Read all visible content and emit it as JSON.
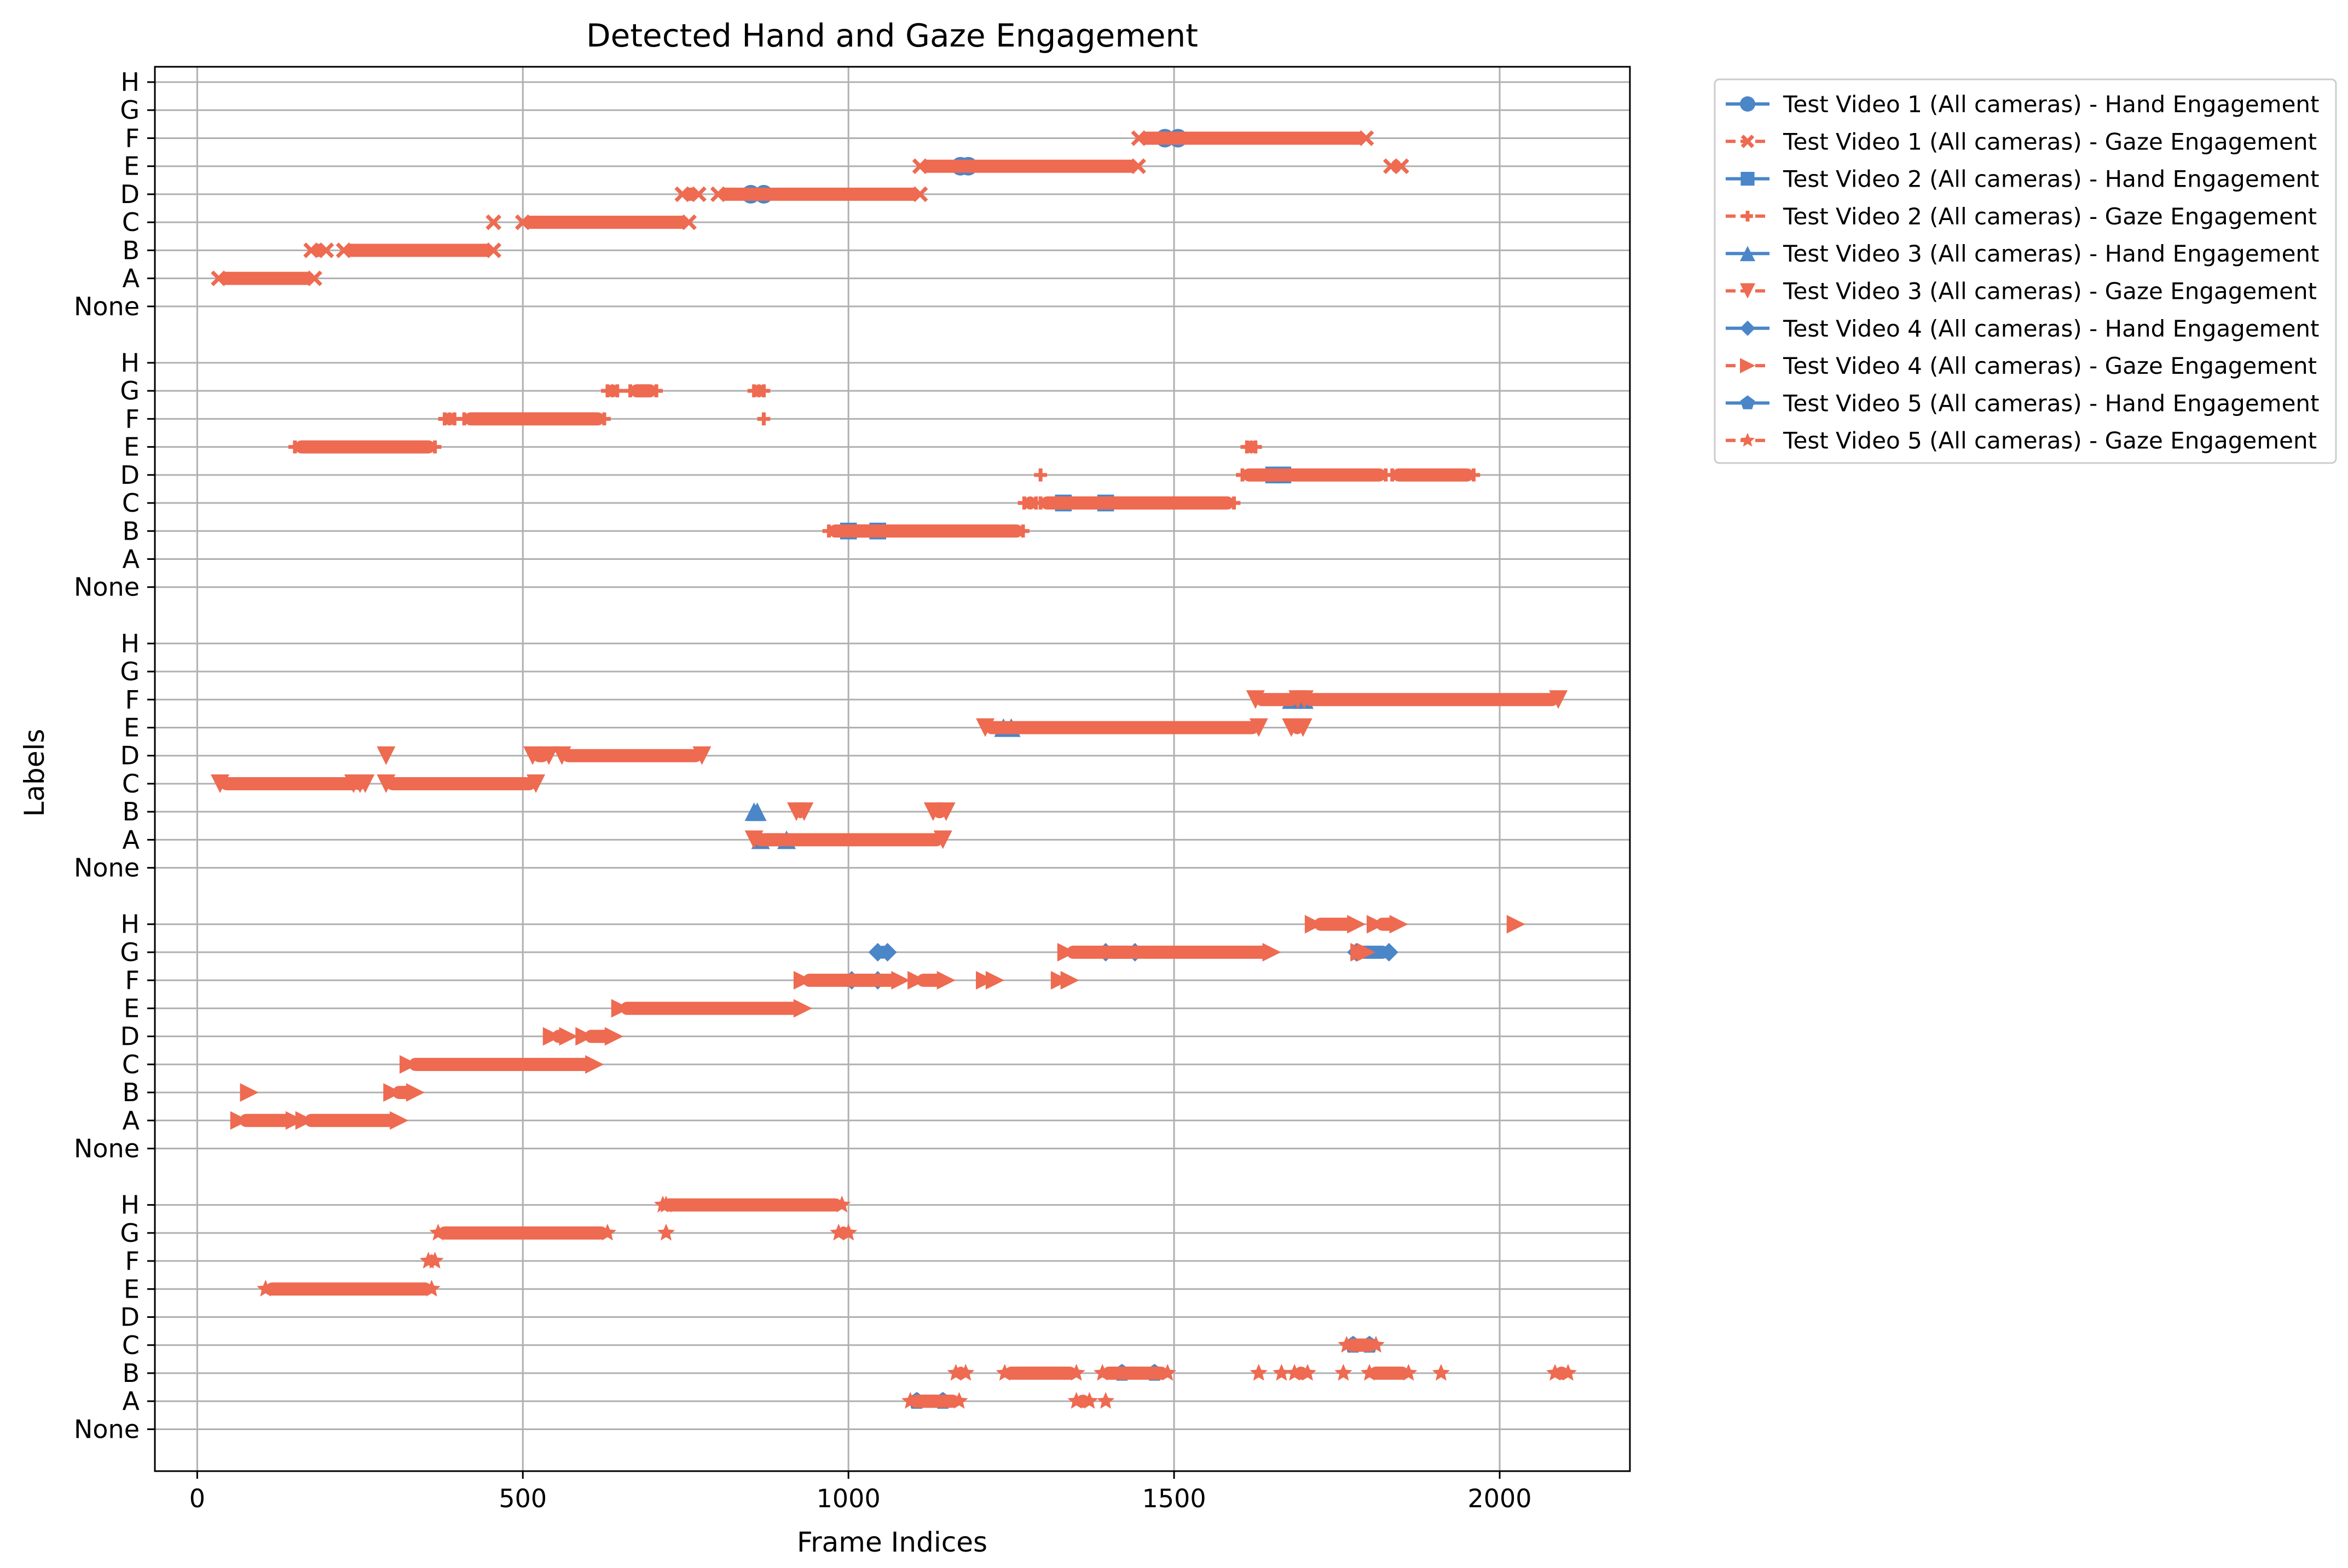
{
  "chart_data": {
    "type": "scatter",
    "title": "Detected Hand and Gaze Engagement",
    "xlabel": "Frame Indices",
    "ylabel": "Labels",
    "xlim": [
      -65,
      2200
    ],
    "x_ticks": [
      0,
      500,
      1000,
      1500,
      2000
    ],
    "x_tick_labels": [
      "0",
      "500",
      "1000",
      "1500",
      "2000"
    ],
    "y_levels": [
      "None",
      "A",
      "B",
      "C",
      "D",
      "E",
      "F",
      "G",
      "H"
    ],
    "grid": true,
    "legend_position": "outside-upper-right",
    "colors": {
      "hand": "#4a86c8",
      "gaze": "#ee6a50"
    },
    "legend": [
      {
        "label": "Test Video 1 (All cameras) - Hand Engagement",
        "kind": "hand",
        "marker": "circle"
      },
      {
        "label": "Test Video 1 (All cameras) - Gaze Engagement",
        "kind": "gaze",
        "marker": "x"
      },
      {
        "label": "Test Video 2 (All cameras) - Hand Engagement",
        "kind": "hand",
        "marker": "square"
      },
      {
        "label": "Test Video 2 (All cameras) - Gaze Engagement",
        "kind": "gaze",
        "marker": "plus"
      },
      {
        "label": "Test Video 3 (All cameras) - Hand Engagement",
        "kind": "hand",
        "marker": "triangle-up"
      },
      {
        "label": "Test Video 3 (All cameras) - Gaze Engagement",
        "kind": "gaze",
        "marker": "triangle-down"
      },
      {
        "label": "Test Video 4 (All cameras) - Hand Engagement",
        "kind": "hand",
        "marker": "diamond"
      },
      {
        "label": "Test Video 4 (All cameras) - Gaze Engagement",
        "kind": "gaze",
        "marker": "triangle-right"
      },
      {
        "label": "Test Video 5 (All cameras) - Hand Engagement",
        "kind": "hand",
        "marker": "pentagon"
      },
      {
        "label": "Test Video 5 (All cameras) - Gaze Engagement",
        "kind": "gaze",
        "marker": "star"
      }
    ],
    "series": [
      {
        "video": 1,
        "kind": "hand",
        "marker": "circle",
        "segments": [
          [
            1486,
            1506,
            "F"
          ],
          [
            1172,
            1184,
            "E"
          ],
          [
            850,
            870,
            "D"
          ]
        ],
        "points": []
      },
      {
        "video": 1,
        "kind": "gaze",
        "marker": "x",
        "segments": [
          [
            1446,
            1795,
            "F"
          ],
          [
            1110,
            1445,
            "E"
          ],
          [
            1833,
            1849,
            "E"
          ],
          [
            745,
            770,
            "D"
          ],
          [
            800,
            1110,
            "D"
          ],
          [
            500,
            755,
            "C"
          ],
          [
            175,
            198,
            "B"
          ],
          [
            225,
            455,
            "B"
          ],
          [
            33,
            180,
            "A"
          ]
        ],
        "points": [
          [
            455,
            "C"
          ]
        ]
      },
      {
        "video": 2,
        "kind": "hand",
        "marker": "square",
        "segments": [
          [
            1653,
            1667,
            "D"
          ],
          [
            1330,
            1395,
            "C"
          ],
          [
            1000,
            1045,
            "B"
          ]
        ],
        "points": []
      },
      {
        "video": 2,
        "kind": "gaze",
        "marker": "plus",
        "segments": [
          [
            630,
            645,
            "G"
          ],
          [
            665,
            705,
            "G"
          ],
          [
            855,
            870,
            "G"
          ],
          [
            380,
            395,
            "F"
          ],
          [
            410,
            625,
            "F"
          ],
          [
            150,
            365,
            "E"
          ],
          [
            1612,
            1625,
            "E"
          ],
          [
            1605,
            1825,
            "D"
          ],
          [
            1835,
            1960,
            "D"
          ],
          [
            1270,
            1288,
            "C"
          ],
          [
            1295,
            1592,
            "C"
          ],
          [
            970,
            1268,
            "B"
          ]
        ],
        "points": [
          [
            870,
            "F"
          ],
          [
            1295,
            "D"
          ]
        ]
      },
      {
        "video": 3,
        "kind": "hand",
        "marker": "triangle-up",
        "segments": [
          [
            1680,
            1700,
            "F"
          ],
          [
            1238,
            1250,
            "E"
          ],
          [
            855,
            860,
            "B"
          ],
          [
            865,
            905,
            "A"
          ]
        ],
        "points": []
      },
      {
        "video": 3,
        "kind": "gaze",
        "marker": "triangle-down",
        "segments": [
          [
            1625,
            1690,
            "F"
          ],
          [
            1700,
            2090,
            "F"
          ],
          [
            1210,
            1630,
            "E"
          ],
          [
            1680,
            1698,
            "E"
          ],
          [
            515,
            540,
            "D"
          ],
          [
            560,
            775,
            "D"
          ],
          [
            35,
            250,
            "C"
          ],
          [
            240,
            258,
            "C"
          ],
          [
            290,
            520,
            "C"
          ],
          [
            920,
            932,
            "B"
          ],
          [
            1130,
            1150,
            "B"
          ],
          [
            855,
            1145,
            "A"
          ]
        ],
        "points": [
          [
            290,
            "D"
          ]
        ]
      },
      {
        "video": 4,
        "kind": "hand",
        "marker": "diamond",
        "segments": [
          [
            1780,
            1830,
            "G"
          ],
          [
            1045,
            1060,
            "G"
          ],
          [
            1395,
            1440,
            "G"
          ],
          [
            1005,
            1045,
            "F"
          ]
        ],
        "points": []
      },
      {
        "video": 4,
        "kind": "gaze",
        "marker": "triangle-right",
        "segments": [
          [
            1715,
            1780,
            "H"
          ],
          [
            1810,
            1845,
            "H"
          ],
          [
            1335,
            1650,
            "G"
          ],
          [
            1785,
            1795,
            "G"
          ],
          [
            930,
            1080,
            "F"
          ],
          [
            1105,
            1150,
            "F"
          ],
          [
            1210,
            1225,
            "F"
          ],
          [
            1325,
            1340,
            "F"
          ],
          [
            650,
            930,
            "E"
          ],
          [
            545,
            570,
            "D"
          ],
          [
            595,
            640,
            "D"
          ],
          [
            325,
            610,
            "C"
          ],
          [
            300,
            335,
            "B"
          ],
          [
            65,
            150,
            "A"
          ],
          [
            165,
            310,
            "A"
          ]
        ],
        "points": [
          [
            2025,
            "H"
          ],
          [
            80,
            "B"
          ]
        ]
      },
      {
        "video": 5,
        "kind": "hand",
        "marker": "pentagon",
        "segments": [
          [
            1775,
            1800,
            "C"
          ],
          [
            1420,
            1470,
            "B"
          ],
          [
            1105,
            1145,
            "A"
          ]
        ],
        "points": []
      },
      {
        "video": 5,
        "kind": "gaze",
        "marker": "star",
        "segments": [
          [
            715,
            990,
            "H"
          ],
          [
            370,
            630,
            "G"
          ],
          [
            985,
            1000,
            "G"
          ],
          [
            355,
            365,
            "F"
          ],
          [
            105,
            360,
            "E"
          ],
          [
            1765,
            1810,
            "C"
          ],
          [
            1165,
            1180,
            "B"
          ],
          [
            1240,
            1350,
            "B"
          ],
          [
            1390,
            1490,
            "B"
          ],
          [
            1685,
            1705,
            "B"
          ],
          [
            1800,
            1860,
            "B"
          ],
          [
            2085,
            2105,
            "B"
          ],
          [
            1095,
            1170,
            "A"
          ],
          [
            1350,
            1370,
            "A"
          ]
        ],
        "points": [
          [
            720,
            "G"
          ],
          [
            720,
            "H"
          ],
          [
            1630,
            "B"
          ],
          [
            1665,
            "B"
          ],
          [
            1760,
            "B"
          ],
          [
            1910,
            "B"
          ],
          [
            1395,
            "A"
          ]
        ]
      }
    ]
  }
}
